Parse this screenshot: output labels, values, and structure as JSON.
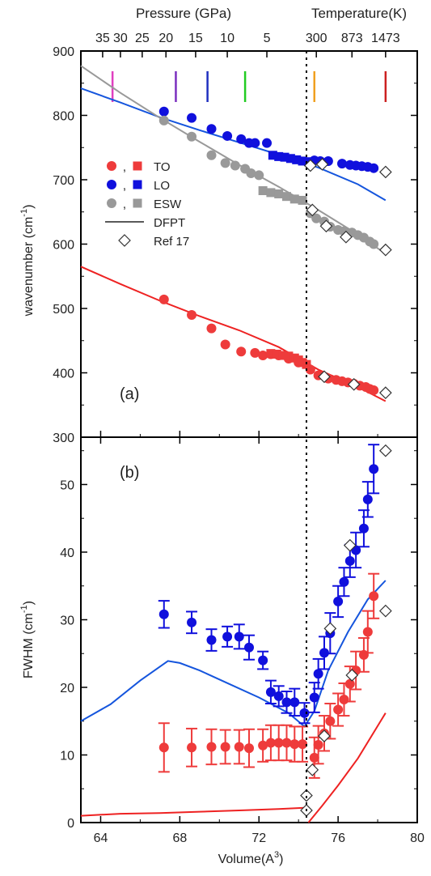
{
  "chart_data": [
    {
      "type": "scatter",
      "panel_label": "(a)",
      "ylabel": "wavenumber (cm",
      "ylabel_sup": "-1",
      "ylabel_end": ")",
      "top_axis_left_title": "Pressure (GPa)",
      "top_axis_right_title": "Temperature(K)",
      "pressure_ticks": [
        {
          "label": "35",
          "v": 64.1
        },
        {
          "label": "30",
          "v": 65.0
        },
        {
          "label": "25",
          "v": 66.1
        },
        {
          "label": "20",
          "v": 67.3
        },
        {
          "label": "15",
          "v": 68.8
        },
        {
          "label": "10",
          "v": 70.4
        },
        {
          "label": "5",
          "v": 72.4
        }
      ],
      "temperature_ticks": [
        {
          "label": "300",
          "v": 74.9
        },
        {
          "label": "873",
          "v": 76.7
        },
        {
          "label": "1473",
          "v": 78.4
        }
      ],
      "pressure_markers": [
        {
          "v": 64.6,
          "color": "#e040c0"
        },
        {
          "v": 67.8,
          "color": "#7b2fbf"
        },
        {
          "v": 69.4,
          "color": "#2030c0"
        },
        {
          "v": 71.3,
          "color": "#22cc22"
        },
        {
          "v": 74.8,
          "color": "#f0a020"
        },
        {
          "v": 78.4,
          "color": "#cc2020"
        }
      ],
      "ylim": [
        300,
        900
      ],
      "yticks": [
        300,
        400,
        500,
        600,
        700,
        800,
        900
      ],
      "legend": [
        {
          "label": "TO",
          "color": "#ee3b3b"
        },
        {
          "label": "LO",
          "color": "#1010dd"
        },
        {
          "label": "ESW",
          "color": "#999999"
        },
        {
          "label": "DFPT",
          "kind": "line"
        },
        {
          "label": "Ref 17",
          "kind": "diamond"
        }
      ],
      "legend_sep": ",",
      "series": [
        {
          "name": "TO",
          "color": "#ee3b3b",
          "points": [
            [
              67.2,
              514
            ],
            [
              68.6,
              490
            ],
            [
              69.6,
              469
            ],
            [
              70.3,
              444
            ],
            [
              71.1,
              433
            ],
            [
              71.8,
              431
            ],
            [
              72.2,
              427
            ],
            [
              72.6,
              429
            ],
            [
              73.0,
              427
            ],
            [
              73.5,
              422
            ],
            [
              74.0,
              416
            ],
            [
              74.6,
              405
            ],
            [
              75.0,
              396
            ],
            [
              75.5,
              391
            ],
            [
              75.9,
              389
            ],
            [
              76.2,
              387
            ],
            [
              76.5,
              385
            ],
            [
              76.8,
              383
            ],
            [
              77.1,
              380
            ],
            [
              77.4,
              378
            ],
            [
              77.6,
              375
            ],
            [
              77.8,
              373
            ]
          ]
        },
        {
          "name": "TO-sq",
          "color": "#ee3b3b",
          "marker": "square",
          "points": [
            [
              72.6,
              430
            ],
            [
              72.9,
              429
            ],
            [
              73.2,
              427
            ],
            [
              73.5,
              426
            ],
            [
              73.8,
              423
            ],
            [
              74.0,
              420
            ],
            [
              74.2,
              416
            ],
            [
              74.4,
              413
            ]
          ]
        },
        {
          "name": "LO",
          "color": "#1010dd",
          "points": [
            [
              67.2,
              806
            ],
            [
              68.6,
              796
            ],
            [
              69.6,
              779
            ],
            [
              70.4,
              768
            ],
            [
              71.1,
              763
            ],
            [
              71.5,
              757
            ],
            [
              71.8,
              757
            ],
            [
              72.4,
              757
            ],
            [
              74.8,
              730
            ],
            [
              75.1,
              729
            ],
            [
              75.5,
              729
            ],
            [
              76.2,
              725
            ],
            [
              76.6,
              723
            ],
            [
              76.9,
              722
            ],
            [
              77.2,
              721
            ],
            [
              77.5,
              720
            ],
            [
              77.8,
              718
            ]
          ]
        },
        {
          "name": "LO-sq",
          "color": "#1010dd",
          "marker": "square",
          "points": [
            [
              72.7,
              738
            ],
            [
              73.0,
              736
            ],
            [
              73.3,
              735
            ],
            [
              73.6,
              733
            ],
            [
              73.9,
              731
            ],
            [
              74.2,
              729
            ],
            [
              74.5,
              728
            ]
          ]
        },
        {
          "name": "ESW",
          "color": "#999999",
          "points": [
            [
              67.2,
              792
            ],
            [
              68.6,
              767
            ],
            [
              69.6,
              738
            ],
            [
              70.3,
              726
            ],
            [
              70.8,
              722
            ],
            [
              71.3,
              717
            ],
            [
              71.6,
              710
            ],
            [
              72.0,
              707
            ],
            [
              74.6,
              648
            ],
            [
              74.9,
              640
            ],
            [
              75.3,
              635
            ],
            [
              75.6,
              627
            ],
            [
              76.0,
              622
            ],
            [
              76.3,
              620
            ],
            [
              76.7,
              618
            ],
            [
              77.0,
              614
            ],
            [
              77.3,
              610
            ],
            [
              77.6,
              604
            ],
            [
              77.8,
              600
            ]
          ]
        },
        {
          "name": "ESW-sq",
          "color": "#999999",
          "marker": "square",
          "points": [
            [
              72.2,
              683
            ],
            [
              72.6,
              680
            ],
            [
              73.0,
              678
            ],
            [
              73.4,
              674
            ],
            [
              73.8,
              670
            ],
            [
              74.2,
              668
            ]
          ]
        }
      ],
      "dfpt": [
        {
          "color": "#ee2222",
          "points": [
            [
              63,
              565
            ],
            [
              65,
              538
            ],
            [
              67,
              512
            ],
            [
              69,
              488
            ],
            [
              71,
              466
            ],
            [
              73,
              440
            ],
            [
              75,
              405
            ],
            [
              77,
              378
            ],
            [
              78.4,
              356
            ]
          ]
        },
        {
          "color": "#1555dd",
          "points": [
            [
              63,
              842
            ],
            [
              65,
              820
            ],
            [
              67,
              797
            ],
            [
              69,
              777
            ],
            [
              71,
              758
            ],
            [
              73,
              739
            ],
            [
              75,
              719
            ],
            [
              77,
              693
            ],
            [
              78.4,
              668
            ]
          ]
        },
        {
          "color": "#999999",
          "points": [
            [
              63,
              877
            ],
            [
              65,
              835
            ],
            [
              67,
              796
            ],
            [
              69,
              759
            ],
            [
              71,
              723
            ],
            [
              73,
              689
            ],
            [
              75,
              653
            ],
            [
              77,
              615
            ],
            [
              78.4,
              585
            ]
          ]
        }
      ],
      "ref17": [
        [
          74.6,
          722
        ],
        [
          75.2,
          724
        ],
        [
          74.7,
          653
        ],
        [
          75.4,
          628
        ],
        [
          76.4,
          611
        ],
        [
          78.4,
          591
        ],
        [
          75.3,
          394
        ],
        [
          76.8,
          382
        ],
        [
          78.4,
          369
        ],
        [
          78.4,
          712
        ]
      ]
    },
    {
      "type": "scatter",
      "panel_label": "(b)",
      "ylabel": "FWHM (cm",
      "ylabel_sup": "-1",
      "ylabel_end": ")",
      "xlabel": "Volume(A",
      "xlabel_sup": "3",
      "xlabel_end": ")",
      "xlim": [
        63,
        80
      ],
      "xticks": [
        64,
        68,
        72,
        76,
        80
      ],
      "ylim": [
        0,
        57
      ],
      "yticks": [
        0,
        10,
        20,
        30,
        40,
        50
      ],
      "series": [
        {
          "name": "LO",
          "color": "#1010dd",
          "points": [
            [
              67.2,
              30.8,
              2.0
            ],
            [
              68.6,
              29.6,
              1.6
            ],
            [
              69.6,
              27.0,
              1.6
            ],
            [
              70.4,
              27.5,
              1.5
            ],
            [
              71.0,
              27.5,
              1.8
            ],
            [
              71.5,
              25.9,
              1.8
            ],
            [
              72.2,
              24.0,
              1.3
            ],
            [
              72.6,
              19.3,
              1.7
            ],
            [
              73.0,
              18.7,
              1.5
            ],
            [
              73.4,
              17.8,
              1.6
            ],
            [
              73.8,
              17.8,
              2.0
            ],
            [
              74.3,
              16.2,
              1.5
            ],
            [
              74.8,
              18.5,
              2.2
            ],
            [
              75.0,
              22.0,
              2.2
            ],
            [
              75.3,
              25.1,
              2.4
            ],
            [
              75.6,
              28.0,
              3.0
            ],
            [
              76.0,
              32.7,
              2.3
            ],
            [
              76.3,
              35.6,
              2.1
            ],
            [
              76.6,
              38.7,
              2.4
            ],
            [
              76.9,
              40.3,
              2.6
            ],
            [
              77.3,
              43.5,
              2.7
            ],
            [
              77.5,
              47.8,
              2.6
            ],
            [
              77.8,
              52.3,
              3.6
            ]
          ]
        },
        {
          "name": "TO",
          "color": "#ee3b3b",
          "points": [
            [
              67.2,
              11.1,
              3.6
            ],
            [
              68.6,
              11.1,
              2.8
            ],
            [
              69.6,
              11.2,
              2.6
            ],
            [
              70.3,
              11.2,
              2.5
            ],
            [
              71.0,
              11.2,
              2.5
            ],
            [
              71.5,
              11.0,
              2.8
            ],
            [
              72.2,
              11.4,
              2.4
            ],
            [
              72.6,
              11.8,
              2.6
            ],
            [
              73.0,
              11.8,
              2.6
            ],
            [
              73.4,
              11.8,
              2.6
            ],
            [
              73.8,
              11.6,
              2.6
            ],
            [
              74.2,
              11.6,
              2.6
            ],
            [
              74.8,
              9.6,
              3.0
            ],
            [
              75.0,
              11.5,
              2.8
            ],
            [
              75.3,
              13.2,
              2.6
            ],
            [
              75.6,
              15.0,
              2.6
            ],
            [
              76.0,
              16.7,
              2.4
            ],
            [
              76.3,
              18.2,
              2.4
            ],
            [
              76.6,
              20.5,
              2.6
            ],
            [
              76.9,
              22.5,
              2.8
            ],
            [
              77.3,
              24.8,
              2.5
            ],
            [
              77.5,
              28.2,
              3.1
            ],
            [
              77.8,
              33.5,
              3.3
            ]
          ]
        }
      ],
      "dfpt": [
        {
          "color": "#1555dd",
          "points": [
            [
              63,
              15.0
            ],
            [
              64.5,
              17.5
            ],
            [
              66,
              21.0
            ],
            [
              67.4,
              23.9
            ],
            [
              68,
              23.6
            ],
            [
              69,
              22.5
            ],
            [
              70.5,
              20.5
            ],
            [
              72,
              18.5
            ],
            [
              73.5,
              16.2
            ],
            [
              74.3,
              14.2
            ],
            [
              74.8,
              16.5
            ],
            [
              75.5,
              22.5
            ],
            [
              76.5,
              28.2
            ],
            [
              77.5,
              33.0
            ],
            [
              78.4,
              35.8
            ]
          ]
        },
        {
          "color": "#ee2222",
          "points": [
            [
              63,
              1.0
            ],
            [
              65,
              1.3
            ],
            [
              67,
              1.4
            ],
            [
              69,
              1.6
            ],
            [
              71,
              1.8
            ],
            [
              73,
              2.0
            ],
            [
              74.4,
              2.2
            ]
          ]
        },
        {
          "color": "#ee2222",
          "points": [
            [
              74.5,
              0
            ],
            [
              75.2,
              2.5
            ],
            [
              76,
              5.5
            ],
            [
              77,
              9.5
            ],
            [
              78.4,
              16.2
            ]
          ]
        }
      ],
      "ref17": [
        [
          74.4,
          1.8
        ],
        [
          74.4,
          4.0
        ],
        [
          74.7,
          7.8
        ],
        [
          75.3,
          12.8
        ],
        [
          75.6,
          28.7
        ],
        [
          76.7,
          21.8
        ],
        [
          78.4,
          31.3
        ],
        [
          76.6,
          41.0
        ],
        [
          78.4,
          55.0
        ]
      ]
    }
  ]
}
